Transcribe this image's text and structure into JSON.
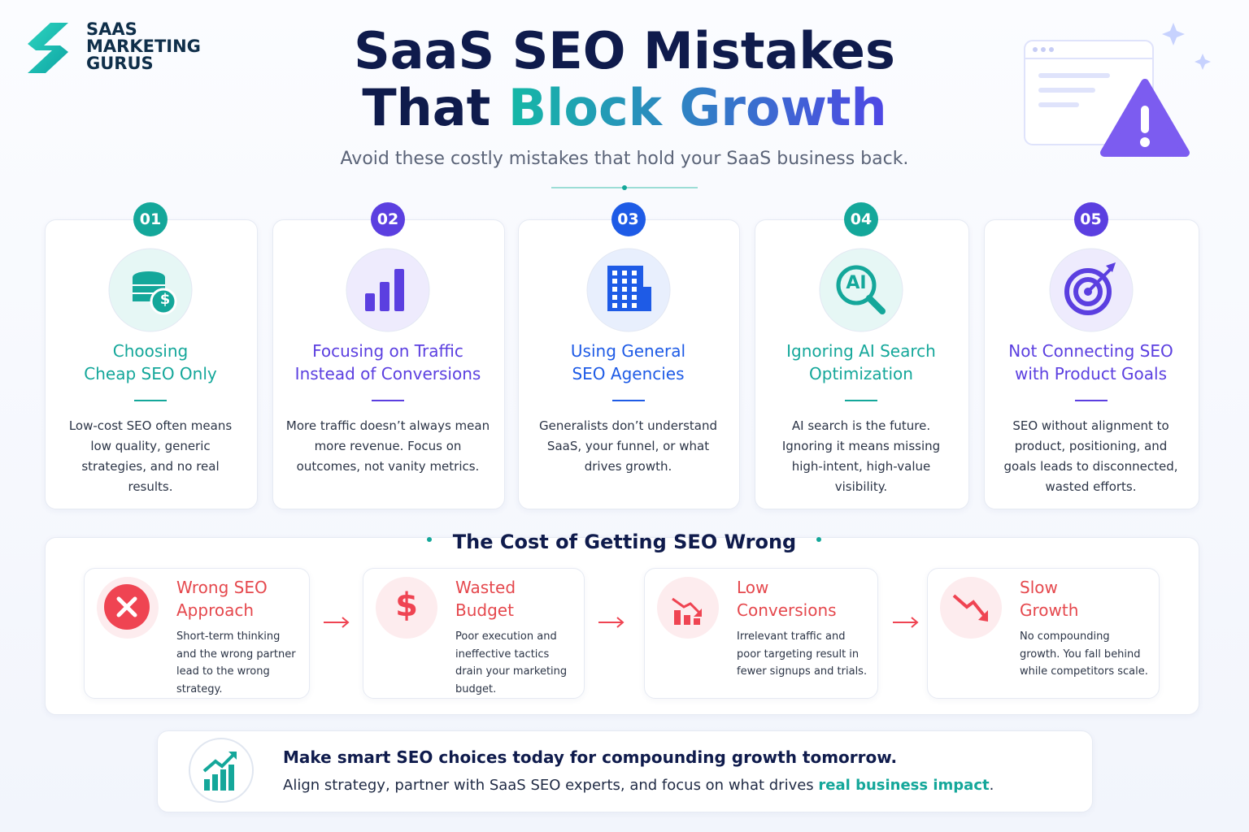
{
  "logo": {
    "lines": [
      "SAAS",
      "MARKETING",
      "GURUS"
    ]
  },
  "header": {
    "title_line1": "SaaS SEO Mistakes",
    "title_line2_start": "That",
    "title_line2_highlight": "Block Growth",
    "subtitle": "Avoid these costly mistakes that hold your SaaS business back."
  },
  "mistakes": [
    {
      "number": "01",
      "title_lines": [
        "Choosing",
        "Cheap SEO Only"
      ],
      "description": "Low-cost SEO often means low quality, generic strategies, and no real results.",
      "icon_label": "$"
    },
    {
      "number": "02",
      "title_lines": [
        "Focusing on Traffic",
        "Instead of Conversions"
      ],
      "description": "More traffic doesn’t always mean more revenue. Focus on outcomes, not vanity metrics."
    },
    {
      "number": "03",
      "title_lines": [
        "Using General",
        "SEO Agencies"
      ],
      "description": "Generalists don’t understand SaaS, your funnel, or what drives growth."
    },
    {
      "number": "04",
      "title_lines": [
        "Ignoring AI Search",
        "Optimization"
      ],
      "description": "AI search is the future. Ignoring it means missing high-intent, high-value visibility.",
      "icon_label": "AI"
    },
    {
      "number": "05",
      "title_lines": [
        "Not Connecting SEO",
        "with Product Goals"
      ],
      "description": "SEO without alignment to product, positioning, and goals leads to disconnected, wasted efforts."
    }
  ],
  "cost": {
    "heading": "The Cost of Getting SEO Wrong",
    "items": [
      {
        "title_lines": [
          "Wrong SEO",
          "Approach"
        ],
        "description": "Short-term thinking and the wrong partner lead to the wrong strategy."
      },
      {
        "title_lines": [
          "Wasted",
          "Budget"
        ],
        "description": "Poor execution and ineffective tactics drain your marketing budget.",
        "icon_label": "$"
      },
      {
        "title_lines": [
          "Low",
          "Conversions"
        ],
        "description": "Irrelevant traffic and poor targeting result in fewer signups and trials."
      },
      {
        "title_lines": [
          "Slow",
          "Growth"
        ],
        "description": "No compounding growth. You fall behind while competitors scale."
      }
    ]
  },
  "footer": {
    "heading": "Make smart SEO choices today for compounding growth tomorrow.",
    "text_start": "Align strategy, partner with SaaS SEO experts, and focus on what drives ",
    "text_highlight": "real business impact",
    "text_end": "."
  }
}
